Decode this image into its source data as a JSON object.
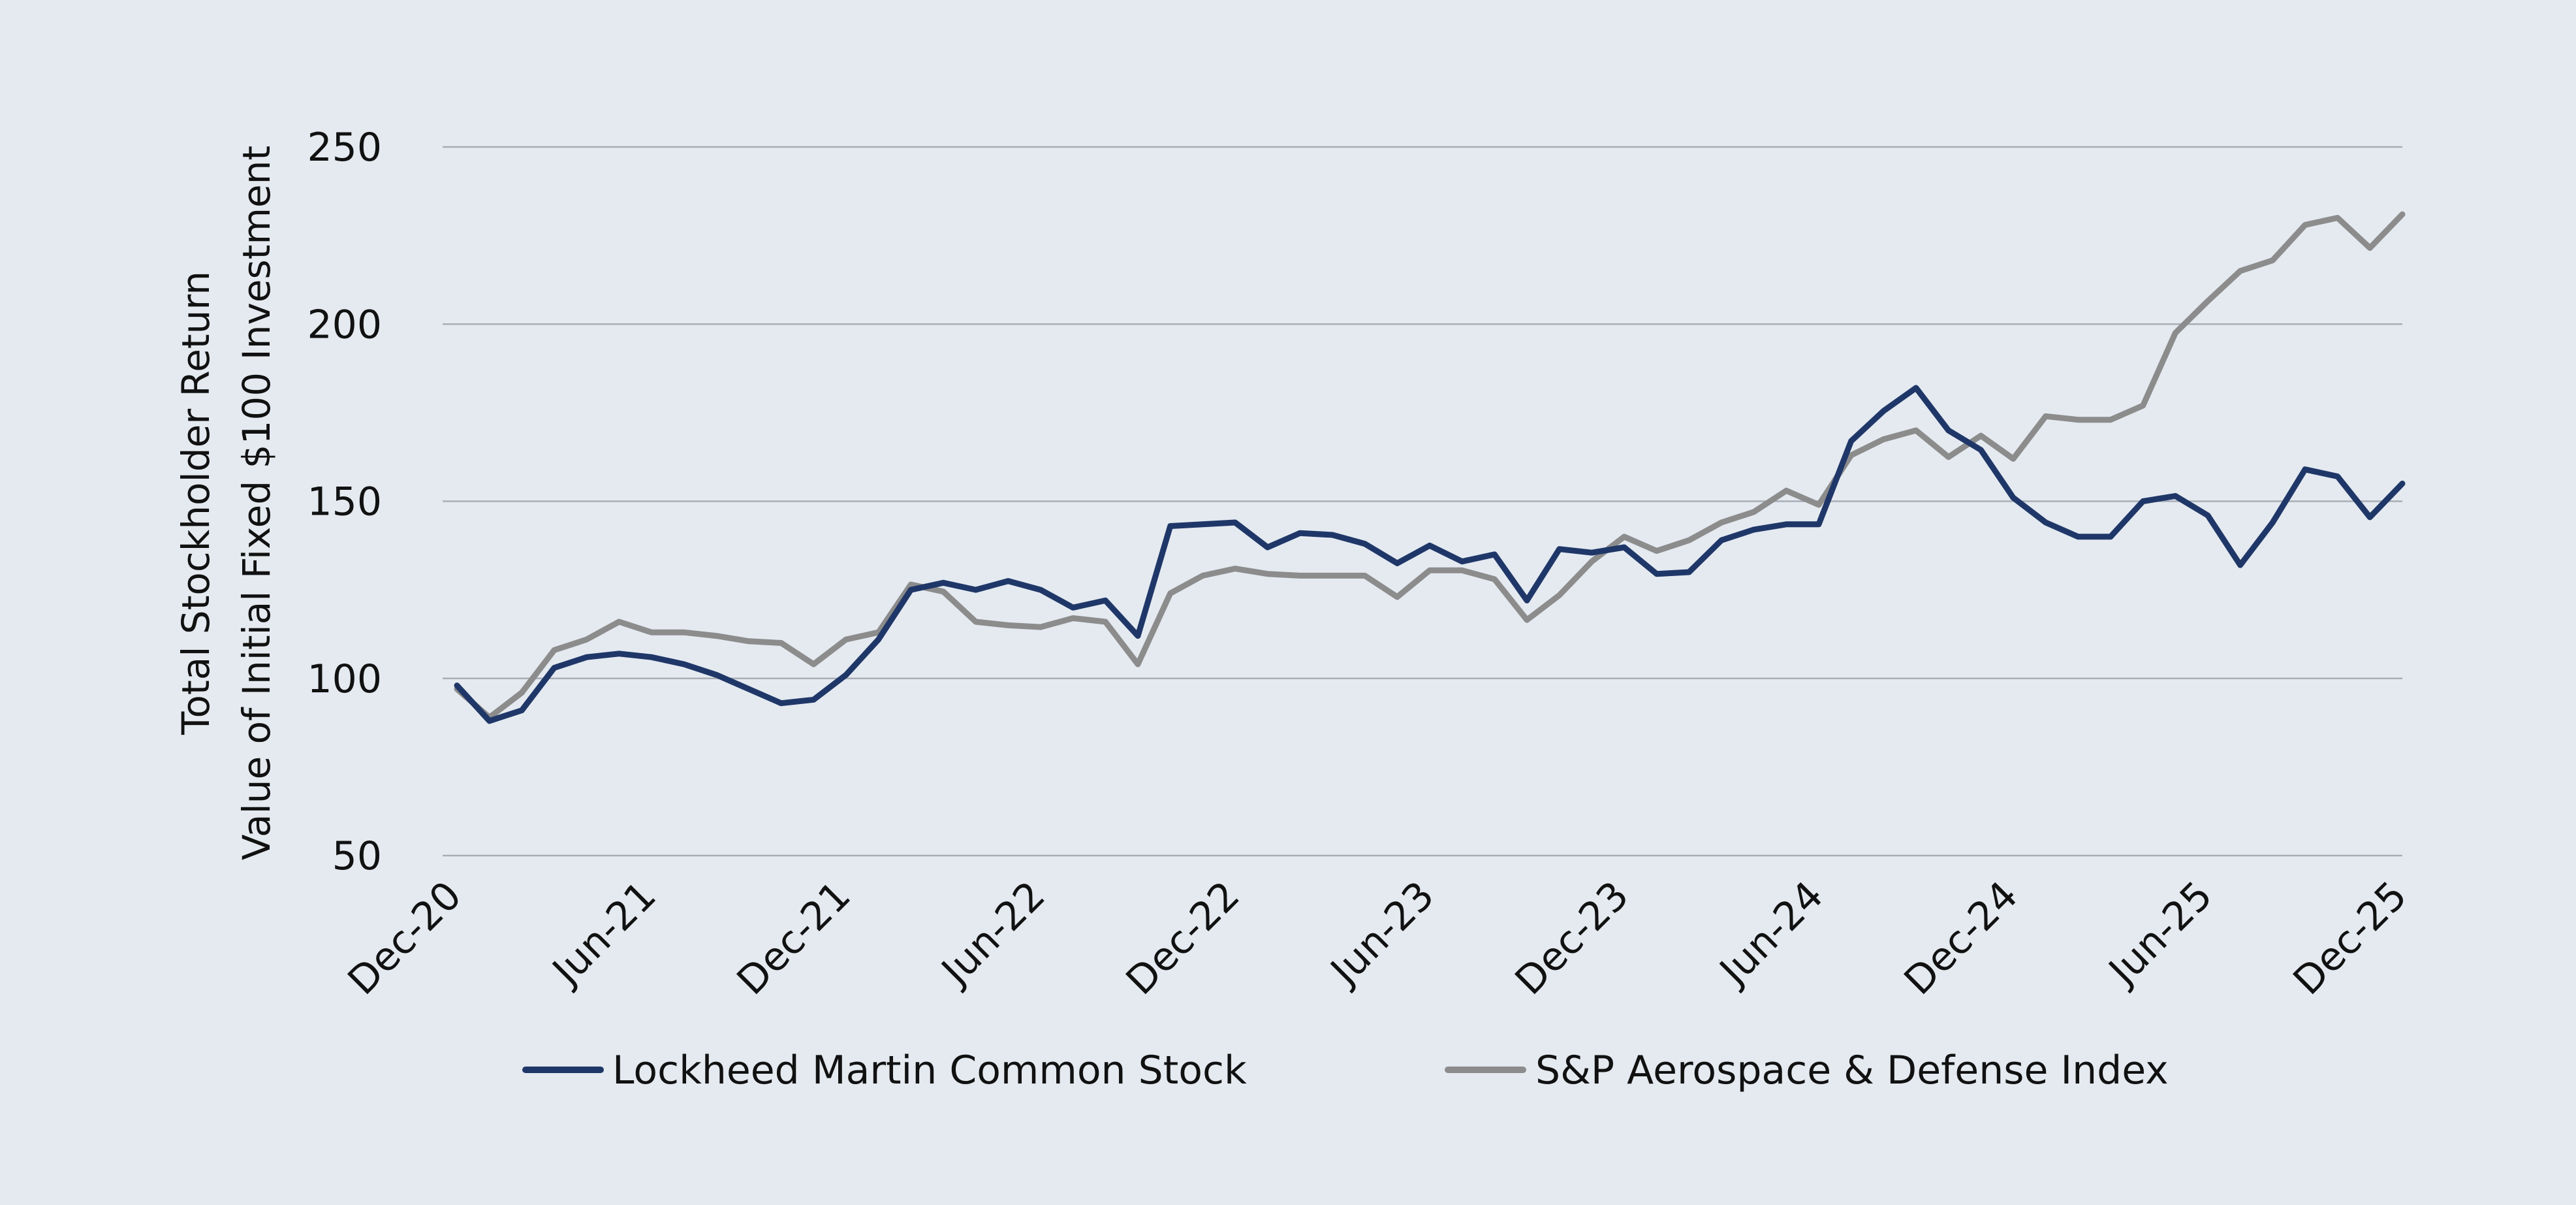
{
  "chart_data": {
    "type": "line",
    "title": "",
    "ylabel": [
      "Total Stockholder Return",
      "Value of Initial Fixed $100 Investment"
    ],
    "xlabel": "",
    "ylim": [
      50,
      250
    ],
    "yticks": [
      50,
      100,
      150,
      200,
      250
    ],
    "grid": true,
    "legend_position": "bottom-center",
    "x_tick_labels": [
      "Dec-20",
      "Jun-21",
      "Dec-21",
      "Jun-22",
      "Dec-22",
      "Jun-23",
      "Dec-23",
      "Jun-24",
      "Dec-24",
      "Jun-25",
      "Dec-25"
    ],
    "x_tick_indices": [
      0,
      6,
      12,
      18,
      24,
      30,
      36,
      42,
      48,
      54,
      60
    ],
    "x_count": 61,
    "series": [
      {
        "name": "Lockheed Martin Common Stock",
        "color": "#1f3768",
        "values": [
          98,
          88,
          91,
          103,
          106,
          107,
          106,
          104,
          101,
          97,
          93,
          94,
          101,
          111,
          125,
          127,
          125,
          127.5,
          125,
          120,
          122,
          112,
          143,
          143.5,
          144,
          137,
          141,
          140.5,
          138,
          132.5,
          137.5,
          133,
          135,
          122,
          136.5,
          135.5,
          137,
          129.5,
          130,
          139,
          142,
          143.5,
          143.5,
          167,
          175.5,
          182,
          170,
          164.5,
          151,
          144,
          140,
          140,
          150,
          151.5,
          146,
          132,
          144,
          159,
          157,
          145.5,
          155
        ]
      },
      {
        "name": "S&P Aerospace & Defense Index",
        "color": "#8c8c8c",
        "values": [
          97,
          89,
          96,
          108,
          111,
          116,
          113,
          113,
          112,
          110.5,
          110,
          104,
          111,
          113,
          126.5,
          124.5,
          116,
          115,
          114.5,
          117,
          116,
          104,
          124,
          129,
          131,
          129.5,
          129,
          129,
          129,
          123,
          130.5,
          130.5,
          128,
          116.5,
          123.5,
          133,
          140,
          136,
          139,
          144,
          147,
          153,
          149,
          163,
          167.5,
          170,
          162.5,
          168.5,
          162,
          174,
          173,
          173,
          177,
          197.5,
          206.5,
          215,
          218,
          228,
          230,
          221.5,
          231
        ]
      }
    ]
  }
}
